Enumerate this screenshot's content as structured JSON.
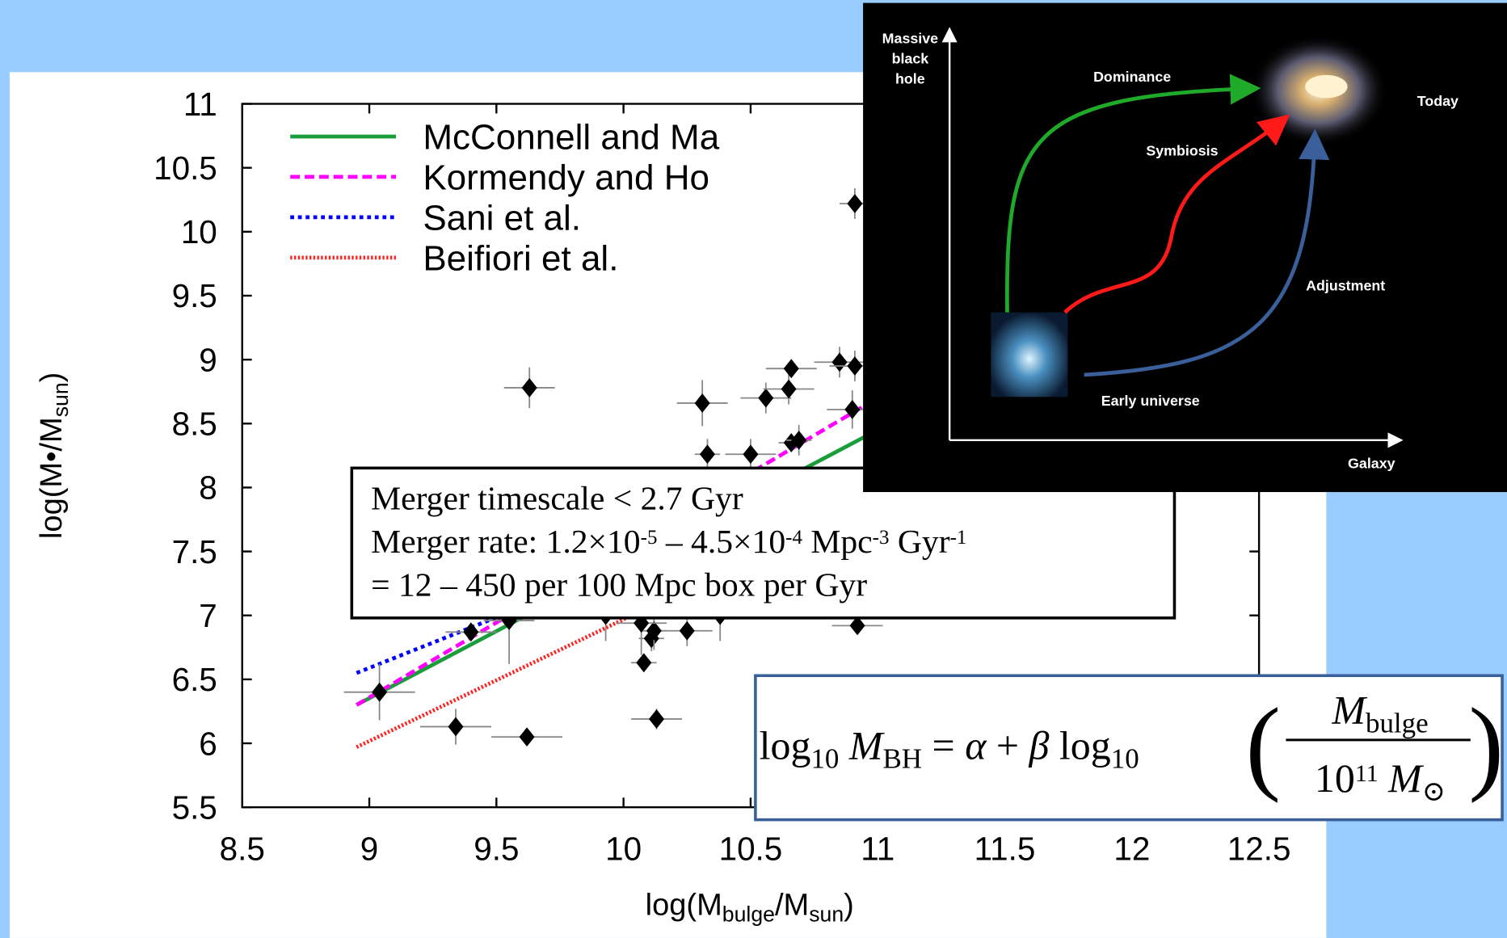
{
  "chart_data": {
    "type": "scatter",
    "xlabel": [
      {
        "text": "log(M"
      },
      {
        "sub": "bulge"
      },
      {
        "text": "/M"
      },
      {
        "sub": "sun"
      },
      {
        "text": ")"
      }
    ],
    "ylabel": [
      {
        "text": "log(M•/M"
      },
      {
        "sub": "sun"
      },
      {
        "text": ")"
      }
    ],
    "xlim": [
      8.5,
      12.5
    ],
    "xticks": [
      8.5,
      9,
      9.5,
      10,
      10.5,
      11,
      11.5,
      12,
      12.5
    ],
    "ylim": [
      5.5,
      11
    ],
    "yticks": [
      5.5,
      6,
      6.5,
      7,
      7.5,
      8,
      8.5,
      9,
      9.5,
      10,
      10.5,
      11
    ],
    "color": "#000000",
    "x": [
      9.04,
      9.34,
      9.62,
      9.63,
      9.4,
      9.55,
      10.08,
      10.13,
      10.11,
      10.12,
      10.25,
      10.07,
      9.93,
      10.38,
      10.31,
      10.33,
      10.5,
      10.56,
      10.65,
      10.66,
      10.66,
      10.69,
      10.85,
      10.91,
      10.9,
      10.92,
      10.91
    ],
    "values": [
      6.4,
      6.13,
      6.05,
      8.78,
      6.87,
      6.96,
      6.63,
      6.19,
      6.82,
      6.88,
      6.88,
      6.94,
      7.0,
      7.0,
      8.66,
      8.26,
      8.26,
      8.7,
      8.77,
      8.93,
      8.35,
      8.37,
      8.98,
      8.95,
      8.61,
      6.92,
      10.22
    ],
    "x_err": [
      0.14,
      0.14,
      0.14,
      0.1,
      0.1,
      0.1,
      0.05,
      0.1,
      0.05,
      0.05,
      0.1,
      0.1,
      0.1,
      0.1,
      0.1,
      0.05,
      0.1,
      0.1,
      0.1,
      0.1,
      0.05,
      0.05,
      0.1,
      0.1,
      0.1,
      0.1,
      0.06
    ],
    "y_err": [
      0.22,
      0.14,
      0.06,
      0.16,
      0.06,
      0.34,
      0.06,
      0.08,
      0.1,
      0.15,
      0.12,
      0.25,
      0.2,
      0.2,
      0.18,
      0.12,
      0.12,
      0.12,
      0.12,
      0.05,
      0.05,
      0.12,
      0.12,
      0.12,
      0.15,
      0.05,
      0.12
    ],
    "series": [
      {
        "name": "McConnell and Ma",
        "color": "#1a9e3a",
        "style": "solid",
        "x": [
          8.95,
          11
        ],
        "values": [
          6.3,
          8.45
        ]
      },
      {
        "name": "Kormendy and Ho",
        "color": "#ff00ff",
        "style": "dashed",
        "x": [
          8.95,
          11
        ],
        "values": [
          6.3,
          8.7
        ]
      },
      {
        "name": "Sani et al.",
        "color": "#0000ff",
        "style": "dotted",
        "x": [
          8.95,
          11
        ],
        "values": [
          6.55,
          8.17
        ]
      },
      {
        "name": "Beifiori et al.",
        "color": "#ff2020",
        "style": "fine",
        "x": [
          8.95,
          11
        ],
        "values": [
          5.97,
          7.92
        ]
      }
    ]
  },
  "note_box": {
    "lines": [
      [
        {
          "text": "Merger timescale < 2.7 Gyr"
        }
      ],
      [
        {
          "text": "Merger rate: 1.2×10"
        },
        {
          "sup": "-5"
        },
        {
          "text": " – 4.5×10"
        },
        {
          "sup": "-4"
        },
        {
          "text": " Mpc"
        },
        {
          "sup": "-3"
        },
        {
          "text": " Gyr"
        },
        {
          "sup": "-1"
        }
      ],
      [
        {
          "text": "= 12 – 450 per 100 Mpc box per Gyr"
        }
      ]
    ]
  },
  "equation": {
    "left": [
      {
        "text": "log"
      },
      {
        "sub": "10"
      },
      {
        "text": " "
      },
      {
        "math": "M"
      },
      {
        "sub": "BH"
      },
      {
        "text": " = "
      },
      {
        "math": "α"
      },
      {
        "text": " + "
      },
      {
        "math": "β"
      },
      {
        "text": " log"
      },
      {
        "sub": "10"
      }
    ],
    "open": "(",
    "close": ")",
    "numerator": [
      {
        "math": "M"
      },
      {
        "sub": "bulge"
      }
    ],
    "denominator": [
      {
        "text": "10"
      },
      {
        "sup": "11"
      },
      {
        "text": "  "
      },
      {
        "math": "M"
      },
      {
        "sub": "⊙"
      }
    ]
  },
  "diagram": {
    "y_axis_label": [
      "Massive",
      "black",
      "hole"
    ],
    "x_axis_label": "Galaxy",
    "paths": {
      "dominance": "Dominance",
      "symbiosis": "Symbiosis",
      "adjustment": "Adjustment"
    },
    "start": "Early universe",
    "end": "Today"
  }
}
